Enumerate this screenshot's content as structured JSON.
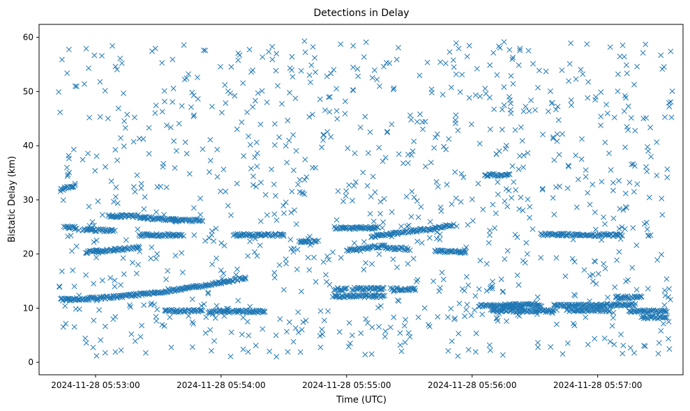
{
  "chart_data": {
    "type": "scatter",
    "title": "Detections in Delay",
    "xlabel": "Time (UTC)",
    "ylabel": "Bistatic Delay (km)",
    "x_unit": "minutes after 2024-11-28 05:52:00",
    "xlim": [
      0.55,
      5.68
    ],
    "ylim": [
      -2.3,
      62.4
    ],
    "x_ticks": [
      {
        "value": 1,
        "label": "2024-11-28 05:53:00"
      },
      {
        "value": 2,
        "label": "2024-11-28 05:54:00"
      },
      {
        "value": 3,
        "label": "2024-11-28 05:55:00"
      },
      {
        "value": 4,
        "label": "2024-11-28 05:56:00"
      },
      {
        "value": 5,
        "label": "2024-11-28 05:57:00"
      }
    ],
    "y_ticks": [
      0,
      10,
      20,
      30,
      40,
      50,
      60
    ],
    "marker": "x",
    "color": "#1f77b4",
    "grid": false,
    "legend": "none",
    "series": [
      {
        "name": "detections",
        "structure": "track segments (dense) plus uniform background clutter",
        "tracks": [
          {
            "x0": 0.72,
            "x1": 2.2,
            "y0": 11.6,
            "y1": 15.6,
            "curve": 1.7
          },
          {
            "x0": 3.2,
            "x1": 3.7,
            "y0": 23.3,
            "y1": 24.7,
            "curve": 1.0
          },
          {
            "x0": 3.7,
            "x1": 3.85,
            "y0": 24.7,
            "y1": 25.5,
            "curve": 1.0
          },
          {
            "x0": 0.72,
            "x1": 0.84,
            "y0": 31.8,
            "y1": 32.8,
            "curve": 1.0
          },
          {
            "x0": 0.75,
            "x1": 0.85,
            "y0": 25.0,
            "y1": 24.8,
            "curve": 1.0
          },
          {
            "x0": 0.92,
            "x1": 1.35,
            "y0": 20.3,
            "y1": 21.2,
            "curve": 1.0
          },
          {
            "x0": 0.9,
            "x1": 1.15,
            "y0": 24.5,
            "y1": 24.3,
            "curve": 1.0
          },
          {
            "x0": 1.1,
            "x1": 1.35,
            "y0": 27.0,
            "y1": 27.0,
            "curve": 1.0
          },
          {
            "x0": 1.35,
            "x1": 1.65,
            "y0": 26.7,
            "y1": 26.3,
            "curve": 1.0
          },
          {
            "x0": 1.6,
            "x1": 1.85,
            "y0": 26.2,
            "y1": 26.2,
            "curve": 1.0
          },
          {
            "x0": 1.35,
            "x1": 1.7,
            "y0": 23.5,
            "y1": 23.5,
            "curve": 1.0
          },
          {
            "x0": 2.1,
            "x1": 2.5,
            "y0": 23.5,
            "y1": 23.5,
            "curve": 1.0
          },
          {
            "x0": 1.55,
            "x1": 1.85,
            "y0": 9.5,
            "y1": 9.5,
            "curve": 1.0
          },
          {
            "x0": 1.9,
            "x1": 2.35,
            "y0": 9.4,
            "y1": 9.4,
            "curve": 1.0
          },
          {
            "x0": 2.62,
            "x1": 2.77,
            "y0": 22.3,
            "y1": 22.3,
            "curve": 1.0
          },
          {
            "x0": 3.0,
            "x1": 3.3,
            "y0": 20.7,
            "y1": 21.5,
            "curve": 1.0
          },
          {
            "x0": 2.9,
            "x1": 3.25,
            "y0": 24.8,
            "y1": 24.8,
            "curve": 1.0
          },
          {
            "x0": 3.3,
            "x1": 3.5,
            "y0": 21.2,
            "y1": 20.9,
            "curve": 1.0
          },
          {
            "x0": 2.9,
            "x1": 3.3,
            "y0": 12.2,
            "y1": 12.2,
            "curve": 1.0
          },
          {
            "x0": 2.9,
            "x1": 3.0,
            "y0": 13.5,
            "y1": 13.5,
            "curve": 1.0
          },
          {
            "x0": 3.05,
            "x1": 3.3,
            "y0": 13.6,
            "y1": 13.6,
            "curve": 1.0
          },
          {
            "x0": 3.35,
            "x1": 3.55,
            "y0": 13.5,
            "y1": 13.5,
            "curve": 1.0
          },
          {
            "x0": 4.1,
            "x1": 4.3,
            "y0": 34.6,
            "y1": 34.6,
            "curve": 1.0
          },
          {
            "x0": 3.7,
            "x1": 3.95,
            "y0": 20.6,
            "y1": 20.4,
            "curve": 1.0
          },
          {
            "x0": 4.05,
            "x1": 4.4,
            "y0": 10.5,
            "y1": 10.3,
            "curve": 1.0
          },
          {
            "x0": 4.15,
            "x1": 4.65,
            "y0": 9.5,
            "y1": 9.5,
            "curve": 1.0
          },
          {
            "x0": 4.25,
            "x1": 4.55,
            "y0": 10.6,
            "y1": 10.6,
            "curve": 1.0
          },
          {
            "x0": 4.65,
            "x1": 5.0,
            "y0": 10.5,
            "y1": 10.5,
            "curve": 1.0
          },
          {
            "x0": 4.75,
            "x1": 5.1,
            "y0": 9.6,
            "y1": 9.6,
            "curve": 1.0
          },
          {
            "x0": 5.0,
            "x1": 5.3,
            "y0": 10.6,
            "y1": 10.6,
            "curve": 1.0
          },
          {
            "x0": 5.25,
            "x1": 5.55,
            "y0": 9.5,
            "y1": 9.4,
            "curve": 1.0
          },
          {
            "x0": 5.15,
            "x1": 5.35,
            "y0": 12.0,
            "y1": 12.0,
            "curve": 1.0
          },
          {
            "x0": 4.55,
            "x1": 4.85,
            "y0": 23.6,
            "y1": 23.6,
            "curve": 1.0
          },
          {
            "x0": 4.85,
            "x1": 5.2,
            "y0": 23.5,
            "y1": 23.5,
            "curve": 1.0
          },
          {
            "x0": 5.35,
            "x1": 5.55,
            "y0": 8.3,
            "y1": 8.3,
            "curve": 1.0
          }
        ],
        "clutter_count": 980,
        "clutter_x_range": [
          0.7,
          5.6
        ],
        "clutter_y_range": [
          1.0,
          59.5
        ]
      }
    ]
  }
}
